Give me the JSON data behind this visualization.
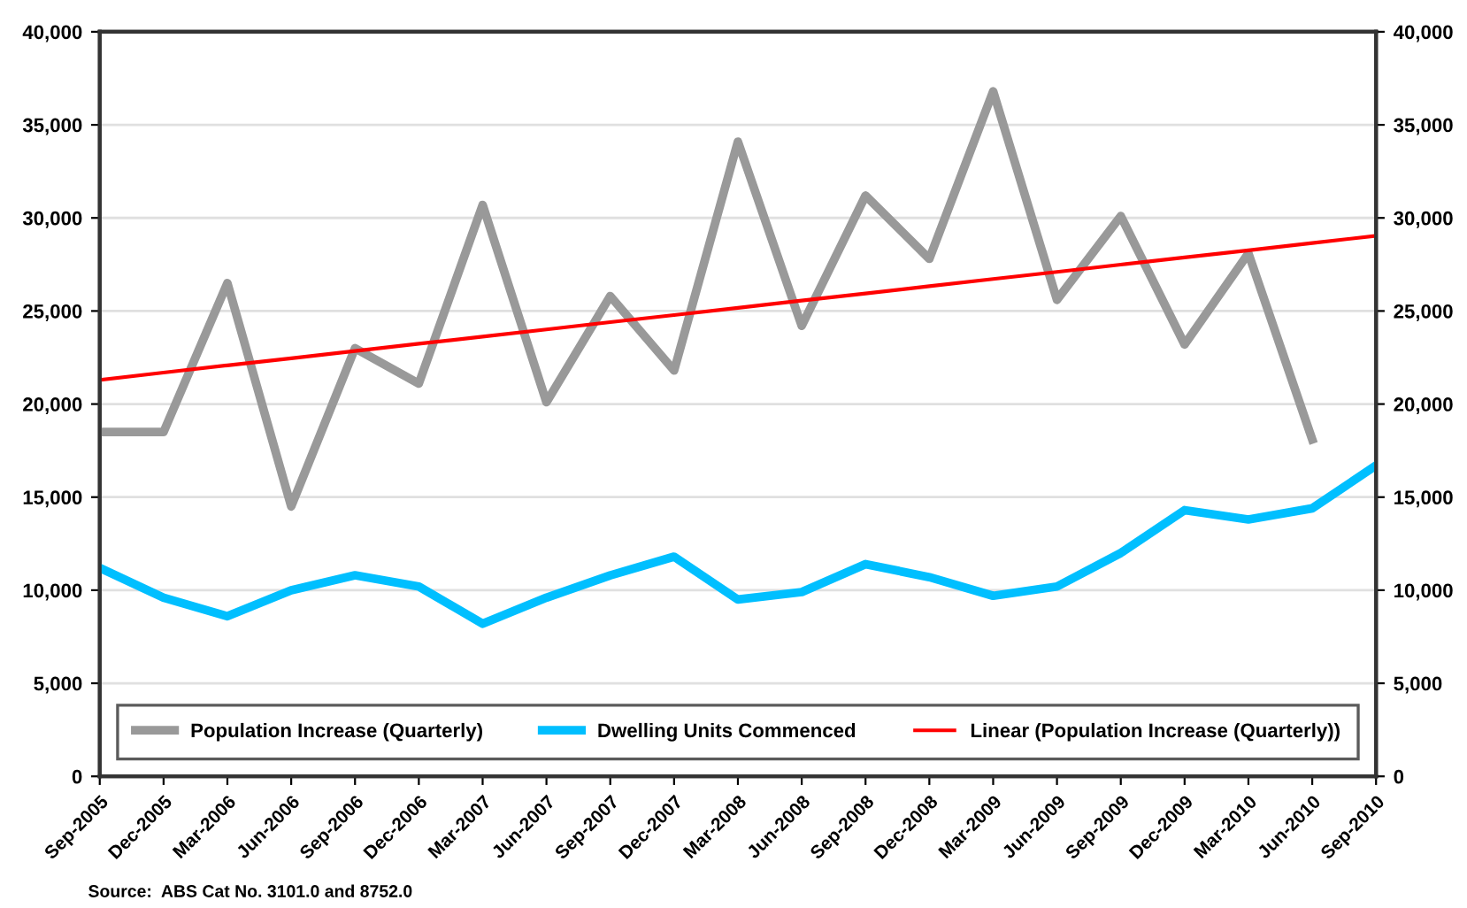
{
  "chart_data": {
    "type": "line",
    "categories": [
      "Sep-2005",
      "Dec-2005",
      "Mar-2006",
      "Jun-2006",
      "Sep-2006",
      "Dec-2006",
      "Mar-2007",
      "Jun-2007",
      "Sep-2007",
      "Dec-2007",
      "Mar-2008",
      "Jun-2008",
      "Sep-2008",
      "Dec-2008",
      "Mar-2009",
      "Jun-2009",
      "Sep-2009",
      "Dec-2009",
      "Mar-2010",
      "Jun-2010",
      "Sep-2010"
    ],
    "series": [
      {
        "name": "Population Increase (Quarterly)",
        "color": "#999999",
        "values": [
          18500,
          18500,
          26500,
          14500,
          23000,
          21100,
          30700,
          20100,
          25800,
          21800,
          34100,
          24200,
          31200,
          27800,
          36800,
          25600,
          30100,
          23200,
          28100,
          18100,
          null
        ]
      },
      {
        "name": "Dwelling Units Commenced",
        "color": "#00bfff",
        "values": [
          11200,
          9600,
          8600,
          10000,
          10800,
          10200,
          8200,
          9600,
          10800,
          11800,
          9500,
          9900,
          11400,
          10700,
          9700,
          10200,
          12000,
          14300,
          13800,
          14400,
          16700
        ]
      },
      {
        "name": "Linear (Population Increase (Quarterly))",
        "color": "#ff0000",
        "values": [
          21300,
          21690,
          22080,
          22460,
          22850,
          23240,
          23620,
          24010,
          24400,
          24780,
          25170,
          25560,
          25940,
          26330,
          26720,
          27100,
          27490,
          27880,
          28260,
          28650,
          29040
        ]
      }
    ],
    "ylim": [
      0,
      40000
    ],
    "yticks": [
      0,
      {
        "value": 5000,
        "label": "5,000"
      },
      {
        "value": 10000,
        "label": "10,000"
      },
      {
        "value": 15000,
        "label": "15,000"
      },
      {
        "value": 20000,
        "label": "20,000"
      },
      {
        "value": 25000,
        "label": "25,000"
      },
      {
        "value": 30000,
        "label": "30,000"
      },
      {
        "value": 35000,
        "label": "35,000"
      },
      {
        "value": 40000,
        "label": "40,000"
      }
    ],
    "y2lim": [
      0,
      40000
    ],
    "y2ticks": [
      0,
      {
        "value": 5000,
        "label": "5,000"
      },
      {
        "value": 10000,
        "label": "10,000"
      },
      {
        "value": 15000,
        "label": "15,000"
      },
      {
        "value": 20000,
        "label": "20,000"
      },
      {
        "value": 25000,
        "label": "25,000"
      },
      {
        "value": 30000,
        "label": "30,000"
      },
      {
        "value": 35000,
        "label": "35,000"
      },
      {
        "value": 40000,
        "label": "40,000"
      }
    ],
    "grid": "y",
    "legend": "bottom",
    "marker": "none",
    "line_style": "solid",
    "annotations": [
      "Source:  ABS Cat No. 3101.0 and 8752.0"
    ]
  }
}
